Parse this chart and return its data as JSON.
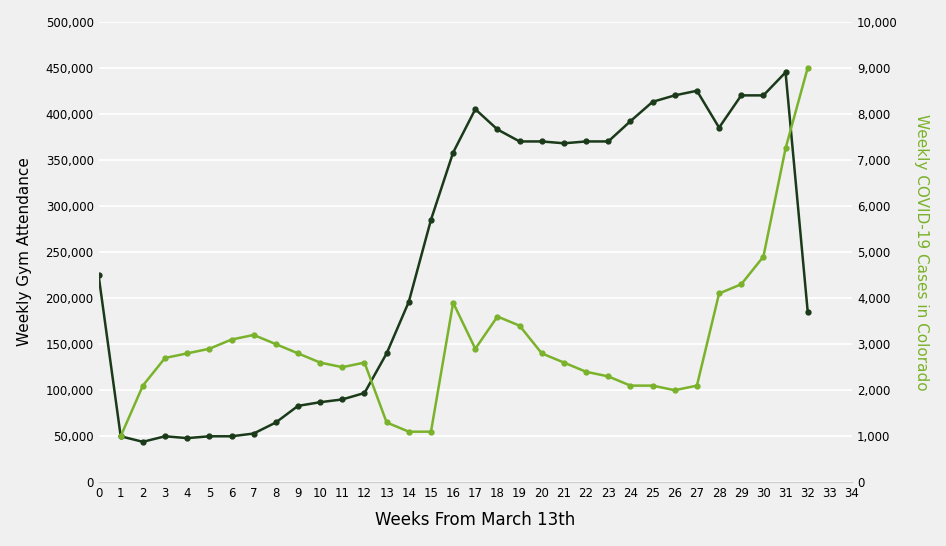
{
  "gym_weeks": [
    0,
    1,
    2,
    3,
    4,
    5,
    6,
    7,
    8,
    9,
    10,
    11,
    12,
    13,
    14,
    15,
    16,
    17,
    18,
    19,
    20,
    21,
    22,
    23,
    24,
    25,
    26,
    27,
    28,
    29,
    30,
    31,
    32
  ],
  "gym_attendance": [
    225000,
    50000,
    44000,
    50000,
    48000,
    50000,
    50000,
    53000,
    65000,
    83000,
    87000,
    90000,
    97000,
    140000,
    196000,
    285000,
    358000,
    405000,
    383000,
    370000,
    370000,
    368000,
    370000,
    370000,
    392000,
    413000,
    420000,
    425000,
    385000,
    420000,
    420000,
    445000,
    185000
  ],
  "covid_weeks": [
    1,
    2,
    3,
    4,
    5,
    6,
    7,
    8,
    9,
    10,
    11,
    12,
    13,
    14,
    15,
    16,
    17,
    18,
    19,
    20,
    21,
    22,
    23,
    24,
    25,
    26,
    27,
    28,
    29,
    30,
    31,
    32
  ],
  "covid_cases": [
    1000,
    2100,
    2700,
    2800,
    2900,
    3100,
    3200,
    3000,
    2800,
    2600,
    2500,
    2600,
    1300,
    1100,
    1100,
    3900,
    2900,
    3600,
    3400,
    2800,
    2600,
    2400,
    2300,
    2100,
    2100,
    2000,
    2100,
    4100,
    4300,
    4900,
    7250,
    9000
  ],
  "gym_color": "#1a3a1a",
  "covid_color": "#7ab22b",
  "background_color": "#f0f0f0",
  "xlabel": "Weeks From March 13th",
  "ylabel_left": "Weekly Gym Attendance",
  "ylabel_right": "Weekly COVID-19 Cases in Colorado",
  "xlim": [
    0,
    34
  ],
  "ylim_left": [
    0,
    500000
  ],
  "ylim_right": [
    0,
    10000
  ],
  "xticks": [
    0,
    1,
    2,
    3,
    4,
    5,
    6,
    7,
    8,
    9,
    10,
    11,
    12,
    13,
    14,
    15,
    16,
    17,
    18,
    19,
    20,
    21,
    22,
    23,
    24,
    25,
    26,
    27,
    28,
    29,
    30,
    31,
    32,
    33,
    34
  ],
  "yticks_left": [
    0,
    50000,
    100000,
    150000,
    200000,
    250000,
    300000,
    350000,
    400000,
    450000,
    500000
  ],
  "yticks_right": [
    0,
    1000,
    2000,
    3000,
    4000,
    5000,
    6000,
    7000,
    8000,
    9000,
    10000
  ]
}
